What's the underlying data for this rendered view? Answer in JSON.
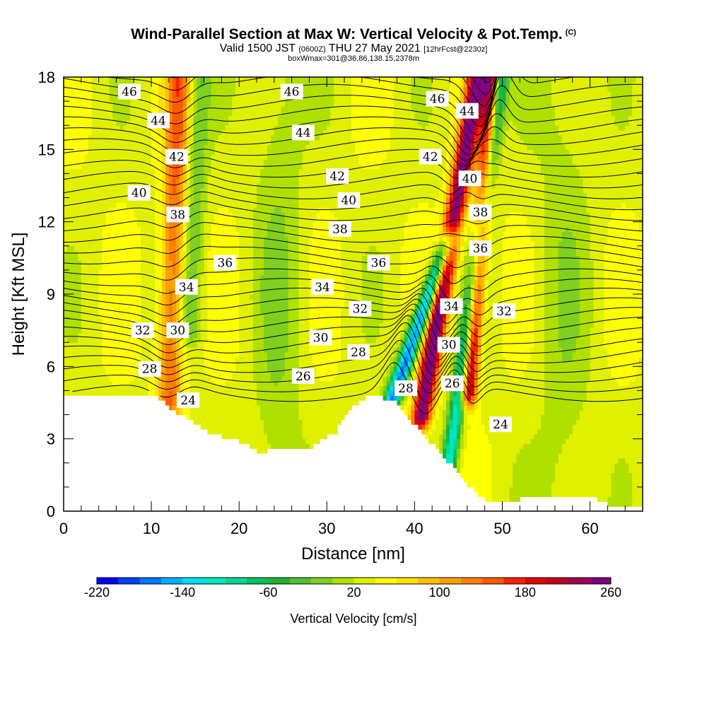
{
  "title": {
    "main": "Wind-Parallel Section at Max W: Vertical Velocity & Pot.Temp.",
    "copyright": "(C)",
    "valid_pre": "Valid 1500 JST",
    "valid_utc": "(0600Z)",
    "valid_post": "THU 27 May 2021",
    "forecast": "[12hrFcst@2230z]",
    "box": "boxWmax=301@36.86,138.15,2378m"
  },
  "chart_data": {
    "type": "heatmap",
    "xlabel": "Distance [nm]",
    "ylabel": "Height [Kft MSL]",
    "xlim": [
      0,
      66
    ],
    "ylim": [
      0,
      18
    ],
    "x_ticks": [
      0,
      10,
      20,
      30,
      40,
      50,
      60
    ],
    "y_ticks": [
      0,
      3,
      6,
      9,
      12,
      15,
      18
    ],
    "colorbar": {
      "label": "Vertical Velocity [cm/s]",
      "min": -220,
      "max": 260,
      "step": 20,
      "tick_labels": [
        -220,
        -140,
        -60,
        20,
        100,
        180,
        260
      ],
      "colors": [
        "#0000ff",
        "#0040ff",
        "#0078ff",
        "#00b0ff",
        "#00e0f0",
        "#00e8c0",
        "#00d890",
        "#00c060",
        "#20b030",
        "#50c030",
        "#80d020",
        "#b0e000",
        "#e0f000",
        "#ffff00",
        "#ffe000",
        "#ffc000",
        "#ffa000",
        "#ff8000",
        "#ff5a00",
        "#ff2000",
        "#e00000",
        "#c00020",
        "#a00050",
        "#800080"
      ]
    },
    "vertical_velocity_features": [
      {
        "x": 12.0,
        "y_bottom": 4.5,
        "y_top": 18,
        "tilt": 1.2,
        "width": 1.4,
        "peak": 110,
        "note": "updraft"
      },
      {
        "x": 14.3,
        "y_bottom": 7.5,
        "y_top": 18,
        "tilt": 1.2,
        "width": 1.3,
        "peak": -55,
        "note": "downdraft"
      },
      {
        "x": 37.6,
        "y_bottom": 4.8,
        "y_top": 11,
        "tilt": 6.0,
        "width": 1.0,
        "peak": -210,
        "note": "downdraft"
      },
      {
        "x": 40.8,
        "y_bottom": 4.0,
        "y_top": 18,
        "tilt": 6.4,
        "width": 1.1,
        "peak": 225,
        "note": "updraft"
      },
      {
        "x": 43.6,
        "y_bottom": 1.0,
        "y_top": 18,
        "tilt": 6.2,
        "width": 0.9,
        "peak": -150,
        "note": "downdraft"
      },
      {
        "x": 46.2,
        "y_bottom": 5.0,
        "y_top": 18,
        "tilt": 2.6,
        "width": 0.9,
        "peak": 205,
        "note": "updraft"
      }
    ],
    "terrain_kft": {
      "x": [
        0,
        10.5,
        11.5,
        12.5,
        14.5,
        17,
        20,
        21.5,
        22.5,
        24,
        28,
        31,
        33,
        35,
        38,
        40,
        42,
        44,
        46,
        47.5,
        49.5,
        52,
        55,
        58,
        60,
        62,
        66
      ],
      "y": [
        4.9,
        4.9,
        4.5,
        4.2,
        3.8,
        3.2,
        2.9,
        2.6,
        2.4,
        2.6,
        2.6,
        3.3,
        4.4,
        4.9,
        4.5,
        3.6,
        2.8,
        2.0,
        1.1,
        0.6,
        0.3,
        0.5,
        0.6,
        0.6,
        0.6,
        0.3,
        0.3
      ]
    },
    "pot_temp_contour_labels": [
      {
        "label": "46",
        "x": 7.5,
        "y": 17.4
      },
      {
        "label": "44",
        "x": 10.8,
        "y": 16.2
      },
      {
        "label": "42",
        "x": 12.9,
        "y": 14.7
      },
      {
        "label": "40",
        "x": 8.6,
        "y": 13.2
      },
      {
        "label": "38",
        "x": 13.0,
        "y": 12.3
      },
      {
        "label": "36",
        "x": 18.4,
        "y": 10.3
      },
      {
        "label": "34",
        "x": 14.0,
        "y": 9.3
      },
      {
        "label": "32",
        "x": 9.0,
        "y": 7.5
      },
      {
        "label": "30",
        "x": 13.0,
        "y": 7.5
      },
      {
        "label": "28",
        "x": 9.8,
        "y": 5.9
      },
      {
        "label": "24",
        "x": 14.2,
        "y": 4.6
      },
      {
        "label": "46",
        "x": 26.0,
        "y": 17.4
      },
      {
        "label": "44",
        "x": 27.3,
        "y": 15.7
      },
      {
        "label": "42",
        "x": 31.2,
        "y": 13.9
      },
      {
        "label": "40",
        "x": 32.5,
        "y": 12.9
      },
      {
        "label": "38",
        "x": 31.5,
        "y": 11.7
      },
      {
        "label": "36",
        "x": 35.9,
        "y": 10.3
      },
      {
        "label": "34",
        "x": 29.5,
        "y": 9.3
      },
      {
        "label": "32",
        "x": 33.8,
        "y": 8.4
      },
      {
        "label": "30",
        "x": 29.3,
        "y": 7.2
      },
      {
        "label": "28",
        "x": 33.6,
        "y": 6.6
      },
      {
        "label": "26",
        "x": 27.3,
        "y": 5.6
      },
      {
        "label": "28",
        "x": 39.0,
        "y": 5.1
      },
      {
        "label": "46",
        "x": 42.6,
        "y": 17.1
      },
      {
        "label": "44",
        "x": 46.0,
        "y": 16.6
      },
      {
        "label": "42",
        "x": 41.8,
        "y": 14.7
      },
      {
        "label": "40",
        "x": 46.3,
        "y": 13.8
      },
      {
        "label": "38",
        "x": 47.5,
        "y": 12.4
      },
      {
        "label": "36",
        "x": 47.5,
        "y": 10.9
      },
      {
        "label": "34",
        "x": 44.2,
        "y": 8.5
      },
      {
        "label": "32",
        "x": 50.2,
        "y": 8.3
      },
      {
        "label": "30",
        "x": 43.9,
        "y": 6.9
      },
      {
        "label": "26",
        "x": 44.3,
        "y": 5.3
      },
      {
        "label": "24",
        "x": 49.8,
        "y": 3.6
      }
    ]
  }
}
